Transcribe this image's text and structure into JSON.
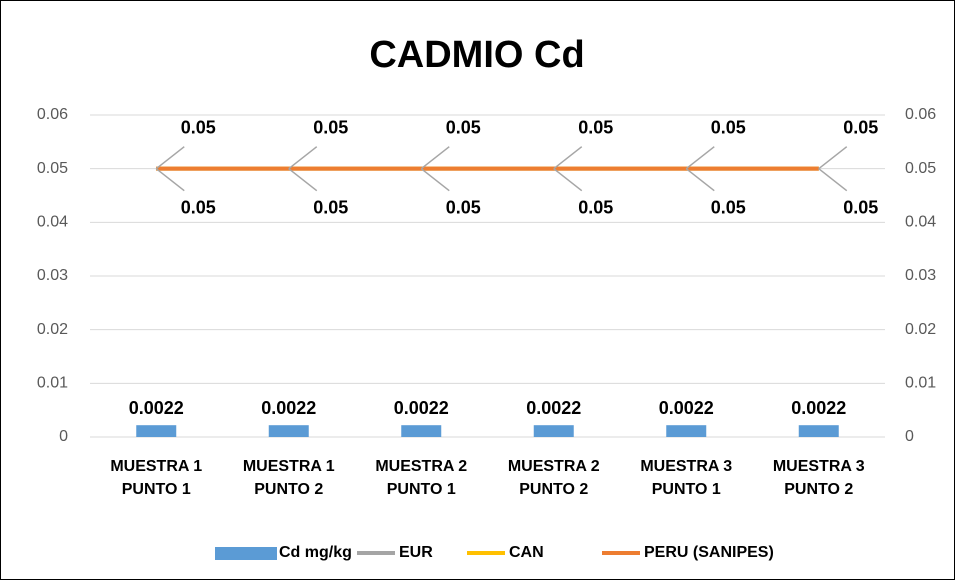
{
  "chart_data": {
    "type": "bar_line",
    "title": "CADMIO Cd",
    "categories": [
      "MUESTRA 1 PUNTO 1",
      "MUESTRA 1 PUNTO 2",
      "MUESTRA 2 PUNTO 1",
      "MUESTRA 2 PUNTO 2",
      "MUESTRA 3 PUNTO 1",
      "MUESTRA 3 PUNTO 2"
    ],
    "series": [
      {
        "name": "Cd mg/kg",
        "type": "bar",
        "color": "#5b9bd5",
        "values": [
          0.0022,
          0.0022,
          0.0022,
          0.0022,
          0.0022,
          0.0022
        ],
        "label_position": "above"
      },
      {
        "name": "EUR",
        "type": "line",
        "axis": "y2",
        "color": "#a5a5a5",
        "values": [
          0.05,
          0.05,
          0.05,
          0.05,
          0.05,
          0.05
        ],
        "label_position": "above"
      },
      {
        "name": "CAN",
        "type": "line",
        "axis": "y2",
        "color": "#ffc000",
        "values": [
          0.05,
          0.05,
          0.05,
          0.05,
          0.05,
          0.05
        ]
      },
      {
        "name": "PERU (SANIPES)",
        "type": "line",
        "axis": "y2",
        "color": "#ed7d31",
        "values": [
          0.05,
          0.05,
          0.05,
          0.05,
          0.05,
          0.05
        ],
        "label_position": "below"
      }
    ],
    "ylim": [
      0,
      0.06
    ],
    "yticks": [
      0,
      0.01,
      0.02,
      0.03,
      0.04,
      0.05,
      0.06
    ],
    "y2lim": [
      0,
      0.06
    ],
    "y2ticks": [
      0,
      0.01,
      0.02,
      0.03,
      0.04,
      0.05,
      0.06
    ],
    "grid": true,
    "legend": "bottom"
  }
}
